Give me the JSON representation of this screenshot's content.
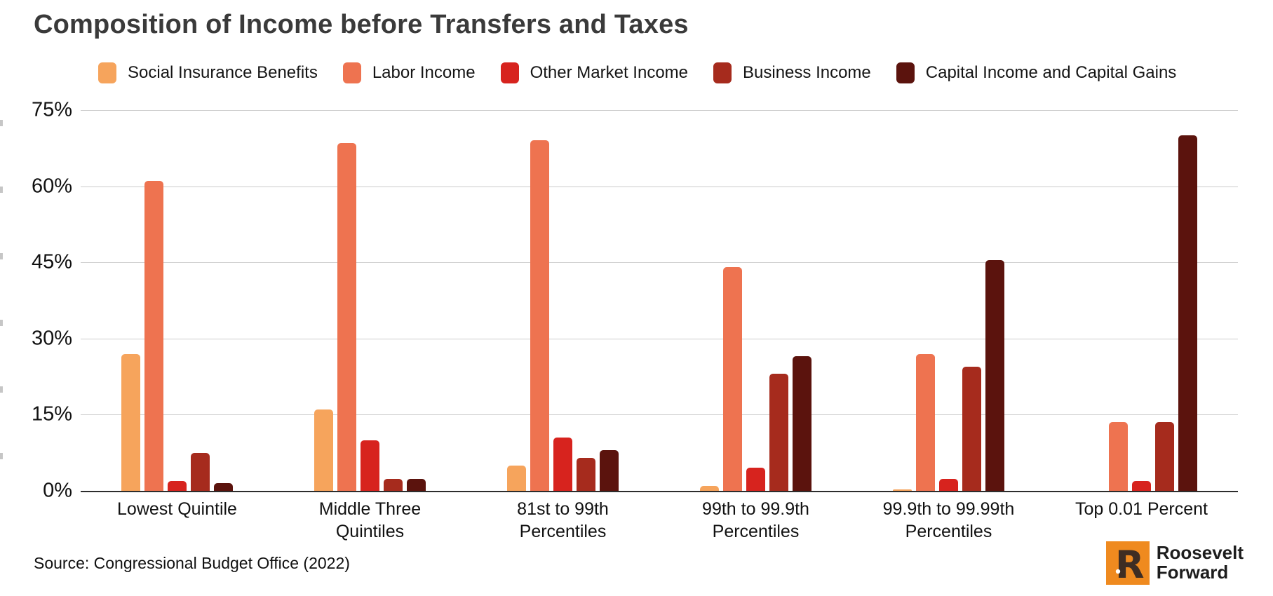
{
  "header": {
    "title": "Composition of Income before Transfers and Taxes"
  },
  "chart_data": {
    "type": "bar",
    "title": "Composition of Income before Transfers and Taxes",
    "categories": [
      "Lowest Quintile",
      "Middle Three Quintiles",
      "81st to 99th Percentiles",
      "99th to 99.9th Percentiles",
      "99.9th to 99.99th Percentiles",
      "Top 0.01 Percent"
    ],
    "series": [
      {
        "name": "Social Insurance Benefits",
        "color": "#F6A45C",
        "values": [
          27,
          16,
          5,
          1,
          0.3,
          0
        ]
      },
      {
        "name": "Labor Income",
        "color": "#EE7350",
        "values": [
          61,
          68.5,
          69,
          44,
          27,
          13.5
        ]
      },
      {
        "name": "Other Market Income",
        "color": "#D7231E",
        "values": [
          2,
          10,
          10.5,
          4.5,
          2.3,
          2
        ]
      },
      {
        "name": "Business Income",
        "color": "#A62B1D",
        "values": [
          7.5,
          2.3,
          6.5,
          23,
          24.5,
          13.5
        ]
      },
      {
        "name": "Capital Income and Capital Gains",
        "color": "#5B130D",
        "values": [
          1.5,
          2.3,
          8,
          26.5,
          45.5,
          70
        ]
      }
    ],
    "ylim": [
      0,
      75
    ],
    "ytick_step": 15,
    "yticks": [
      0,
      15,
      30,
      45,
      60,
      75
    ],
    "ytick_labels": [
      "0%",
      "15%",
      "30%",
      "45%",
      "60%",
      "75%"
    ],
    "grid": true,
    "legend_position": "top",
    "axis_color": "#2d2d2d",
    "gridline_color": "#cccccc"
  },
  "footer": {
    "source": "Source: Congressional Budget Office (2022)",
    "logo": {
      "mark": "R",
      "line1": "Roosevelt",
      "line2": "Forward",
      "square_color": "#EF8A1F",
      "mark_color": "#3E2D23"
    }
  }
}
